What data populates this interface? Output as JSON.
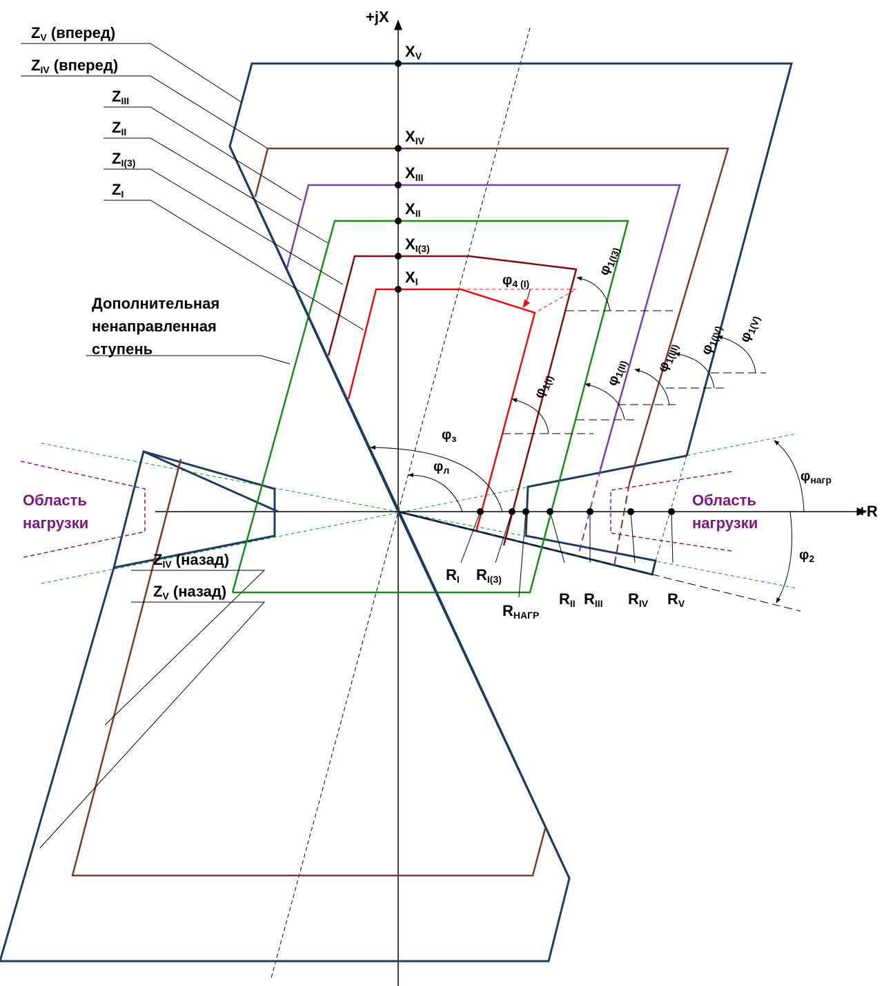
{
  "axes": {
    "x_axis_label": "+R",
    "y_axis_label": "+jX"
  },
  "zone_labels": [
    {
      "id": "zv-fwd",
      "main": "Z",
      "sub": "V",
      "suffix": " (вперед)"
    },
    {
      "id": "ziv-fwd",
      "main": "Z",
      "sub": "IV",
      "suffix": " (вперед)"
    },
    {
      "id": "ziii",
      "main": "Z",
      "sub": "III",
      "suffix": ""
    },
    {
      "id": "zii",
      "main": "Z",
      "sub": "II",
      "suffix": ""
    },
    {
      "id": "zi3",
      "main": "Z",
      "sub": "I(3)",
      "suffix": ""
    },
    {
      "id": "zi",
      "main": "Z",
      "sub": "I",
      "suffix": ""
    },
    {
      "id": "ziv-back",
      "main": "Z",
      "sub": "IV",
      "suffix": " (назад)"
    },
    {
      "id": "zv-back",
      "main": "Z",
      "sub": "V",
      "suffix": " (назад)"
    }
  ],
  "x_points": [
    {
      "main": "X",
      "sub": "V"
    },
    {
      "main": "X",
      "sub": "IV"
    },
    {
      "main": "X",
      "sub": "III"
    },
    {
      "main": "X",
      "sub": "II"
    },
    {
      "main": "X",
      "sub": "I(3)"
    },
    {
      "main": "X",
      "sub": "I"
    }
  ],
  "r_points": [
    {
      "main": "R",
      "sub": "I"
    },
    {
      "main": "R",
      "sub": "I(3)"
    },
    {
      "main": "R",
      "sub": "НАГР"
    },
    {
      "main": "R",
      "sub": "II"
    },
    {
      "main": "R",
      "sub": "III"
    },
    {
      "main": "R",
      "sub": "IV"
    },
    {
      "main": "R",
      "sub": "V"
    }
  ],
  "extra_stage_label": [
    "Дополнительная",
    "ненаправленная",
    "ступень"
  ],
  "load_area": {
    "left": [
      "Область",
      "нагрузки"
    ],
    "right": [
      "Область",
      "нагрузки"
    ]
  },
  "angles": {
    "phi1_v": {
      "main": "φ",
      "sub": "1(V)"
    },
    "phi1_iv": {
      "main": "φ",
      "sub": "1(IV)"
    },
    "phi1_iii": {
      "main": "φ",
      "sub": "1(III)"
    },
    "phi1_ii": {
      "main": "φ",
      "sub": "1(II)"
    },
    "phi1_i": {
      "main": "φ",
      "sub": "1(I)"
    },
    "phi1_i3": {
      "main": "φ",
      "sub": "1(I3)"
    },
    "phi4_i": {
      "main": "φ",
      "sub": "4 (I)"
    },
    "phi3": {
      "main": "φ",
      "sub": "з"
    },
    "phil": {
      "main": "φ",
      "sub": "л"
    },
    "phi_load": {
      "main": "φ",
      "sub": "нагр"
    },
    "phi2": {
      "main": "φ",
      "sub": "2"
    }
  },
  "colors": {
    "zone_v": "#1f3b5e",
    "zone_iv": "#7b3a2e",
    "zone_iii": "#7a3fa8",
    "zone_ii": "#1a8a1a",
    "zone_i3": "#7a0f0f",
    "zone_i": "#e01010",
    "load_area": "#7a1a7a"
  }
}
